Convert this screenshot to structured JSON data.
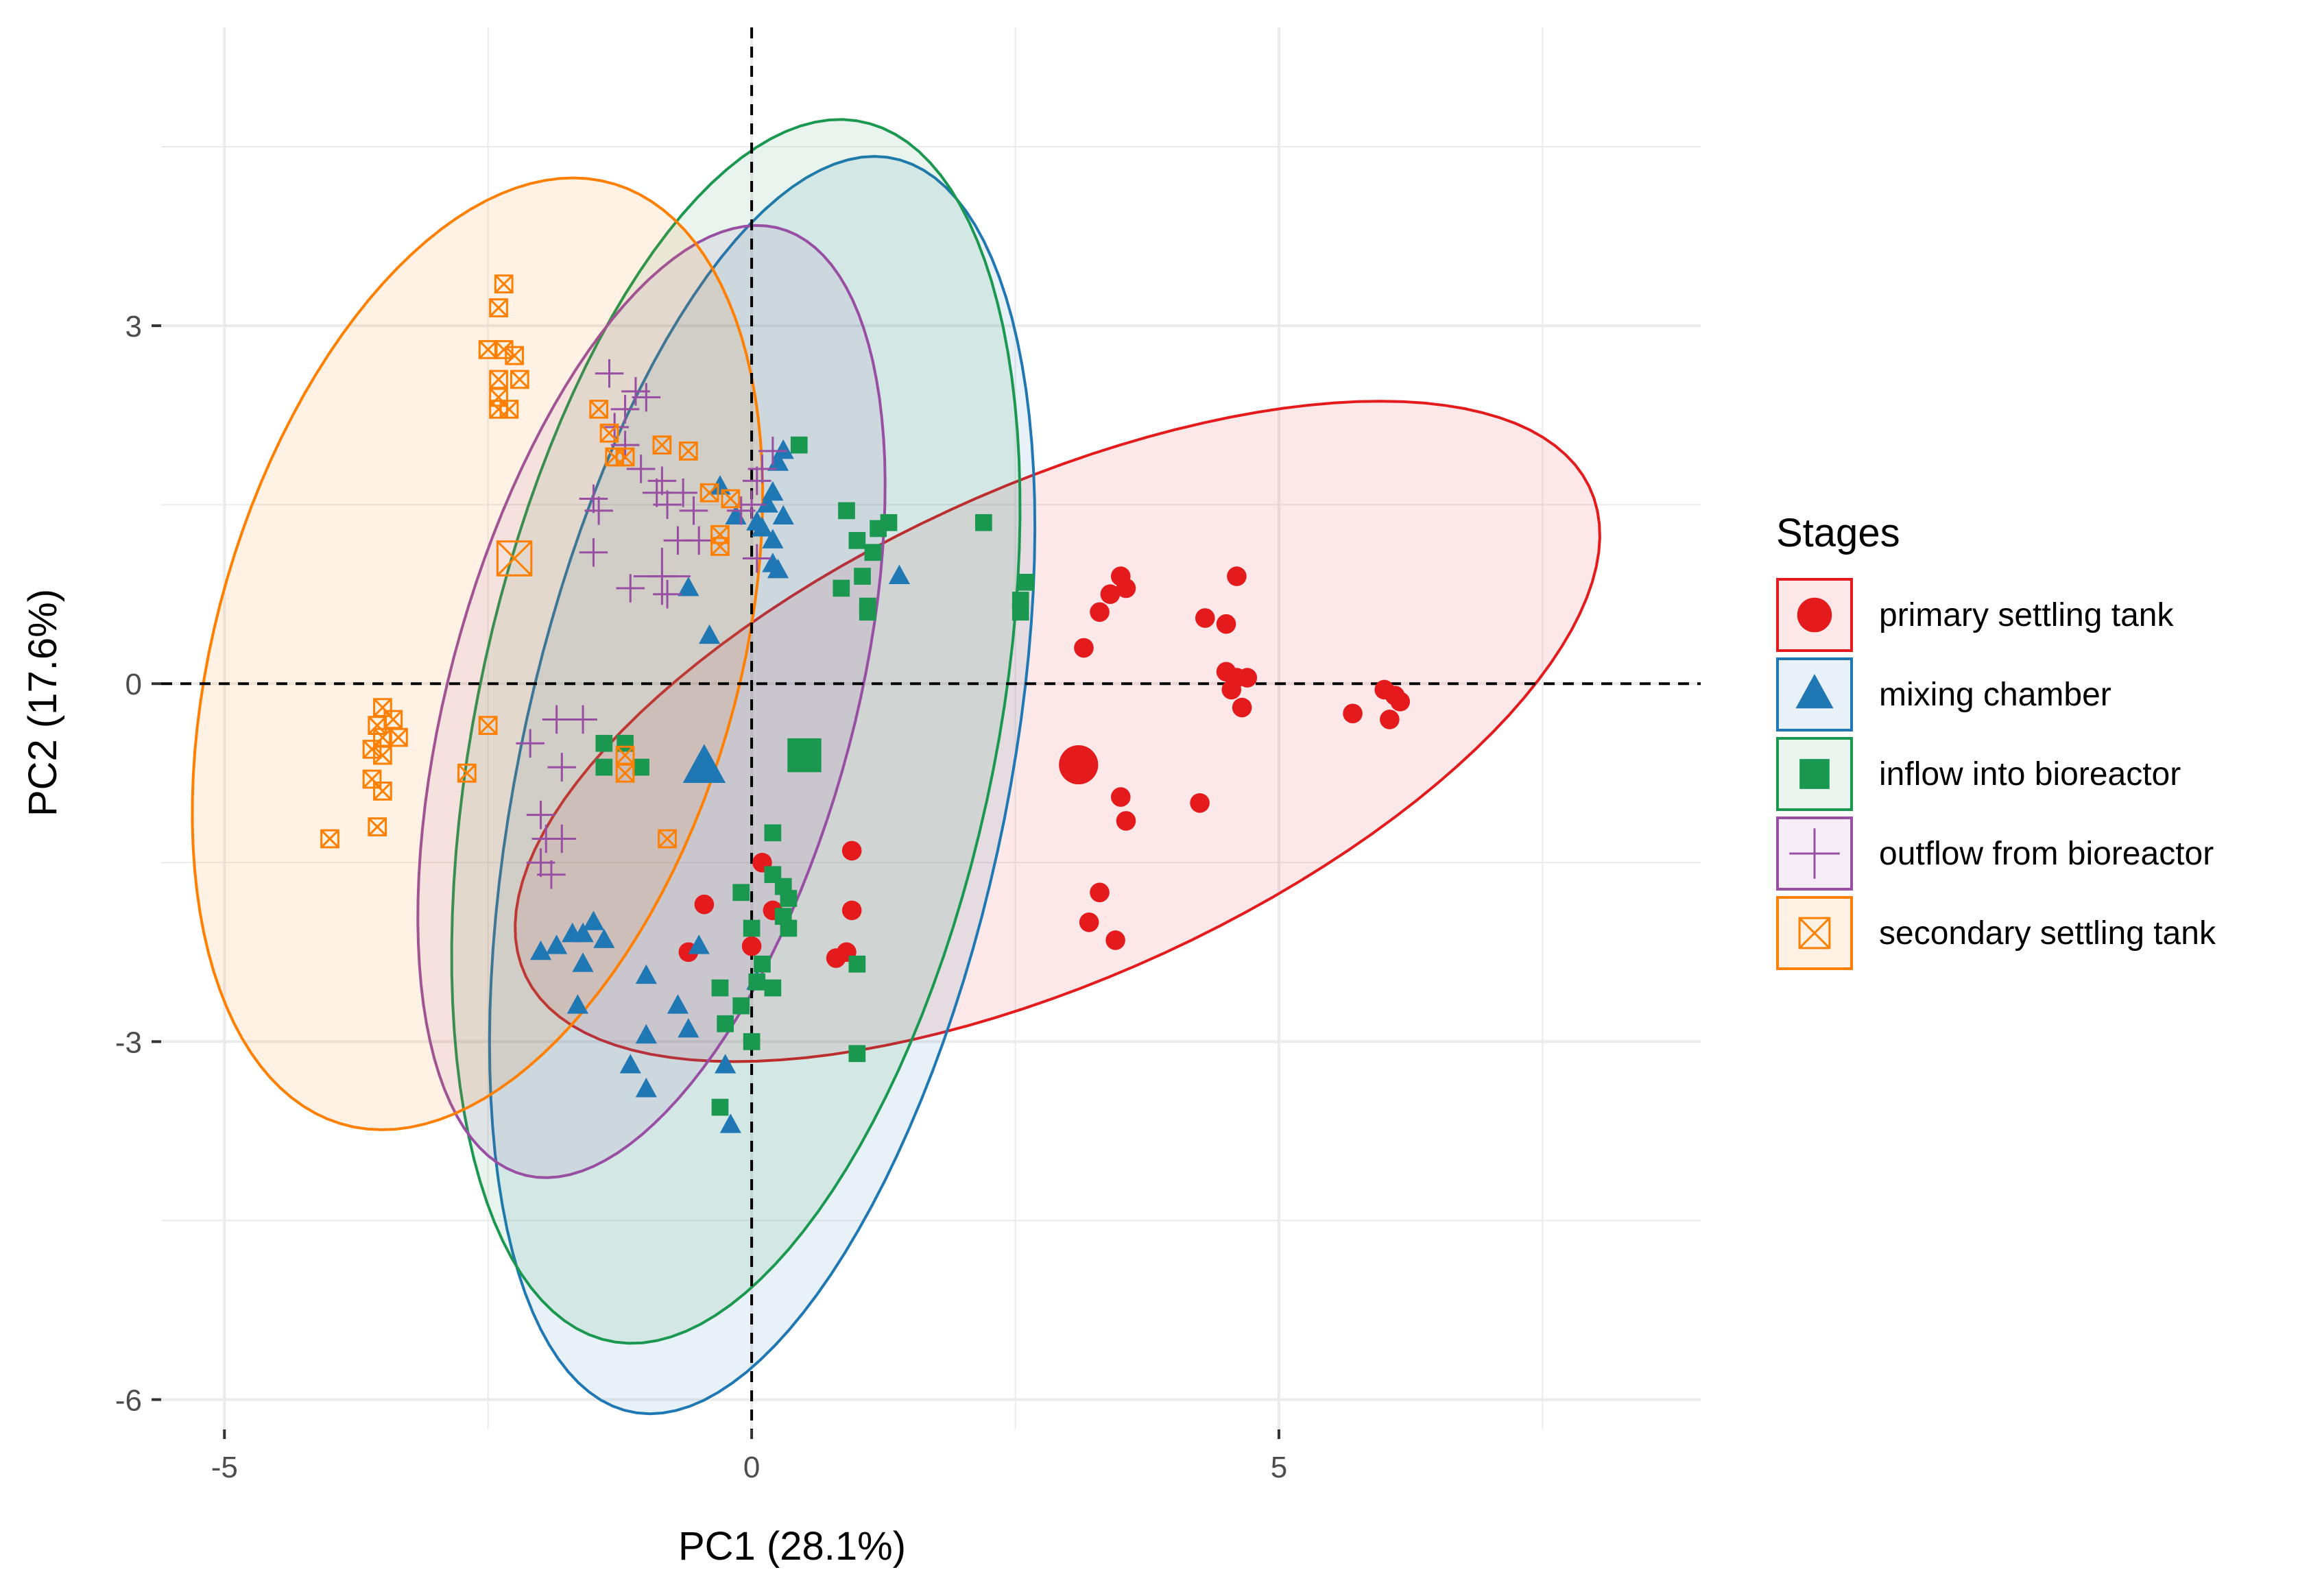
{
  "chart_data": {
    "type": "scatter",
    "xlabel": "PC1 (28.1%)",
    "ylabel": "PC2 (17.6%)",
    "xlim": [
      -5.6,
      9.0
    ],
    "ylim": [
      -6.25,
      5.5
    ],
    "xticks": [
      -5,
      0,
      5
    ],
    "yticks": [
      -6,
      -3,
      0,
      3
    ],
    "grid": true,
    "reference_lines": {
      "x": 0,
      "y": 0
    },
    "legend": {
      "title": "Stages",
      "position": "right"
    },
    "series": [
      {
        "name": "primary settling tank",
        "color": "#e41a1c",
        "shape": "circle",
        "centroid": [
          3.1,
          -0.68
        ],
        "ellipse": {
          "center": [
            2.9,
            -0.4
          ],
          "rx": 5.45,
          "ry": 2.1,
          "angle_deg": 21
        },
        "points": [
          [
            3.5,
            0.9
          ],
          [
            3.55,
            0.8
          ],
          [
            3.4,
            0.75
          ],
          [
            3.3,
            0.6
          ],
          [
            3.15,
            0.3
          ],
          [
            4.3,
            0.55
          ],
          [
            4.5,
            0.5
          ],
          [
            4.6,
            0.9
          ],
          [
            4.5,
            0.1
          ],
          [
            4.6,
            0.05
          ],
          [
            4.7,
            0.05
          ],
          [
            4.65,
            -0.2
          ],
          [
            4.55,
            -0.05
          ],
          [
            5.7,
            -0.25
          ],
          [
            6.05,
            -0.3
          ],
          [
            6.1,
            -0.1
          ],
          [
            6.0,
            -0.05
          ],
          [
            6.15,
            -0.15
          ],
          [
            3.5,
            -0.95
          ],
          [
            3.55,
            -1.15
          ],
          [
            4.25,
            -1.0
          ],
          [
            3.3,
            -1.75
          ],
          [
            3.2,
            -2.0
          ],
          [
            3.45,
            -2.15
          ],
          [
            0.95,
            -1.4
          ],
          [
            0.95,
            -1.9
          ],
          [
            0.9,
            -2.25
          ],
          [
            0.8,
            -2.3
          ],
          [
            0.1,
            -1.5
          ],
          [
            0.2,
            -1.9
          ],
          [
            -0.45,
            -1.85
          ],
          [
            -0.6,
            -2.25
          ],
          [
            0.0,
            -2.2
          ]
        ]
      },
      {
        "name": "mixing chamber",
        "color": "#1f78b4",
        "shape": "triangle",
        "centroid": [
          -0.45,
          -0.7
        ],
        "ellipse": {
          "center": [
            0.1,
            -0.85
          ],
          "rx": 5.4,
          "ry": 2.3,
          "angle_deg": 76
        },
        "points": [
          [
            0.05,
            1.35
          ],
          [
            0.1,
            1.3
          ],
          [
            0.15,
            1.5
          ],
          [
            0.2,
            1.2
          ],
          [
            -0.15,
            1.4
          ],
          [
            -0.3,
            1.65
          ],
          [
            0.3,
            1.95
          ],
          [
            0.25,
            1.85
          ],
          [
            0.2,
            1.6
          ],
          [
            0.3,
            1.4
          ],
          [
            0.2,
            1.0
          ],
          [
            0.25,
            0.95
          ],
          [
            -0.6,
            0.8
          ],
          [
            -0.4,
            0.4
          ],
          [
            1.4,
            0.9
          ],
          [
            -0.45,
            -0.7
          ],
          [
            -2.0,
            -2.25
          ],
          [
            -1.85,
            -2.2
          ],
          [
            -1.6,
            -2.1
          ],
          [
            -1.5,
            -2.0
          ],
          [
            -1.7,
            -2.1
          ],
          [
            -1.4,
            -2.15
          ],
          [
            -1.6,
            -2.35
          ],
          [
            -1.0,
            -2.45
          ],
          [
            -1.65,
            -2.7
          ],
          [
            -0.7,
            -2.7
          ],
          [
            -0.5,
            -2.2
          ],
          [
            -1.0,
            -2.95
          ],
          [
            -1.15,
            -3.2
          ],
          [
            -1.0,
            -3.4
          ],
          [
            -0.25,
            -3.2
          ],
          [
            -0.2,
            -3.7
          ],
          [
            -0.6,
            -2.9
          ],
          [
            0.05,
            -2.5
          ]
        ]
      },
      {
        "name": "inflow into bioreactor",
        "color": "#1a9850",
        "shape": "square",
        "centroid": [
          0.5,
          -0.6
        ],
        "ellipse": {
          "center": [
            -0.15,
            -0.4
          ],
          "rx": 5.25,
          "ry": 2.45,
          "angle_deg": 76
        },
        "points": [
          [
            0.45,
            2.0
          ],
          [
            0.9,
            1.45
          ],
          [
            1.0,
            1.2
          ],
          [
            1.2,
            1.3
          ],
          [
            1.3,
            1.35
          ],
          [
            1.15,
            1.1
          ],
          [
            1.05,
            0.9
          ],
          [
            0.85,
            0.8
          ],
          [
            1.1,
            0.65
          ],
          [
            2.2,
            1.35
          ],
          [
            2.6,
            0.85
          ],
          [
            2.55,
            0.7
          ],
          [
            2.55,
            0.6
          ],
          [
            1.1,
            0.6
          ],
          [
            0.5,
            -0.6
          ],
          [
            -1.4,
            -0.5
          ],
          [
            -1.2,
            -0.5
          ],
          [
            -1.4,
            -0.7
          ],
          [
            -1.05,
            -0.7
          ],
          [
            0.2,
            -1.25
          ],
          [
            0.2,
            -1.6
          ],
          [
            0.3,
            -1.7
          ],
          [
            0.3,
            -1.95
          ],
          [
            -0.1,
            -1.75
          ],
          [
            0.0,
            -2.05
          ],
          [
            0.35,
            -1.8
          ],
          [
            0.35,
            -2.05
          ],
          [
            0.1,
            -2.35
          ],
          [
            0.05,
            -2.5
          ],
          [
            -0.3,
            -2.55
          ],
          [
            0.2,
            -2.55
          ],
          [
            -0.1,
            -2.7
          ],
          [
            -0.25,
            -2.85
          ],
          [
            0.0,
            -3.0
          ],
          [
            1.0,
            -2.35
          ],
          [
            1.0,
            -3.1
          ],
          [
            -0.3,
            -3.55
          ]
        ]
      },
      {
        "name": "outflow from bioreactor",
        "color": "#984ea3",
        "shape": "cross",
        "centroid": [
          -0.85,
          0.9
        ],
        "ellipse": {
          "center": [
            -0.95,
            -0.15
          ],
          "rx": 4.15,
          "ry": 1.9,
          "angle_deg": 72
        },
        "points": [
          [
            -1.35,
            2.6
          ],
          [
            -1.1,
            2.45
          ],
          [
            -1.2,
            2.3
          ],
          [
            -1.0,
            2.4
          ],
          [
            -1.3,
            2.15
          ],
          [
            -1.2,
            2.0
          ],
          [
            -1.05,
            1.8
          ],
          [
            -0.85,
            1.7
          ],
          [
            -0.9,
            1.6
          ],
          [
            -0.8,
            1.5
          ],
          [
            -0.65,
            1.6
          ],
          [
            -0.55,
            1.45
          ],
          [
            -1.5,
            1.55
          ],
          [
            -1.45,
            1.45
          ],
          [
            -1.5,
            1.1
          ],
          [
            -0.7,
            1.2
          ],
          [
            -0.85,
            0.9
          ],
          [
            -1.15,
            0.8
          ],
          [
            -0.8,
            0.75
          ],
          [
            -0.5,
            1.2
          ],
          [
            -0.1,
            1.45
          ],
          [
            0.0,
            1.5
          ],
          [
            0.05,
            1.7
          ],
          [
            0.1,
            1.8
          ],
          [
            0.2,
            1.95
          ],
          [
            0.05,
            1.05
          ],
          [
            -1.6,
            -0.3
          ],
          [
            -1.8,
            -0.7
          ],
          [
            -1.85,
            -0.3
          ],
          [
            -2.1,
            -0.5
          ],
          [
            -2.0,
            -1.1
          ],
          [
            -1.8,
            -1.3
          ],
          [
            -1.95,
            -1.3
          ],
          [
            -2.0,
            -1.5
          ],
          [
            -1.9,
            -1.6
          ]
        ]
      },
      {
        "name": "secondary settling tank",
        "color": "#ff7f00",
        "shape": "square-x",
        "centroid": [
          -2.25,
          1.05
        ],
        "ellipse": {
          "center": [
            -2.6,
            0.25
          ],
          "rx": 4.15,
          "ry": 2.45,
          "angle_deg": 70
        },
        "points": [
          [
            -2.35,
            3.35
          ],
          [
            -2.4,
            3.15
          ],
          [
            -2.5,
            2.8
          ],
          [
            -2.35,
            2.8
          ],
          [
            -2.25,
            2.75
          ],
          [
            -2.4,
            2.55
          ],
          [
            -2.2,
            2.55
          ],
          [
            -2.4,
            2.4
          ],
          [
            -2.3,
            2.3
          ],
          [
            -2.4,
            2.3
          ],
          [
            -1.45,
            2.3
          ],
          [
            -1.35,
            2.1
          ],
          [
            -1.3,
            1.9
          ],
          [
            -1.2,
            1.9
          ],
          [
            -0.85,
            2.0
          ],
          [
            -0.6,
            1.95
          ],
          [
            -0.4,
            1.6
          ],
          [
            -0.2,
            1.55
          ],
          [
            -0.3,
            1.25
          ],
          [
            -0.3,
            1.15
          ],
          [
            -3.5,
            -0.2
          ],
          [
            -3.4,
            -0.3
          ],
          [
            -3.55,
            -0.35
          ],
          [
            -3.5,
            -0.45
          ],
          [
            -3.6,
            -0.55
          ],
          [
            -3.5,
            -0.6
          ],
          [
            -3.35,
            -0.45
          ],
          [
            -3.6,
            -0.8
          ],
          [
            -3.5,
            -0.9
          ],
          [
            -3.55,
            -1.2
          ],
          [
            -4.0,
            -1.3
          ],
          [
            -2.5,
            -0.35
          ],
          [
            -2.7,
            -0.75
          ],
          [
            -1.2,
            -0.6
          ],
          [
            -1.2,
            -0.75
          ],
          [
            -0.8,
            -1.3
          ]
        ]
      }
    ]
  }
}
